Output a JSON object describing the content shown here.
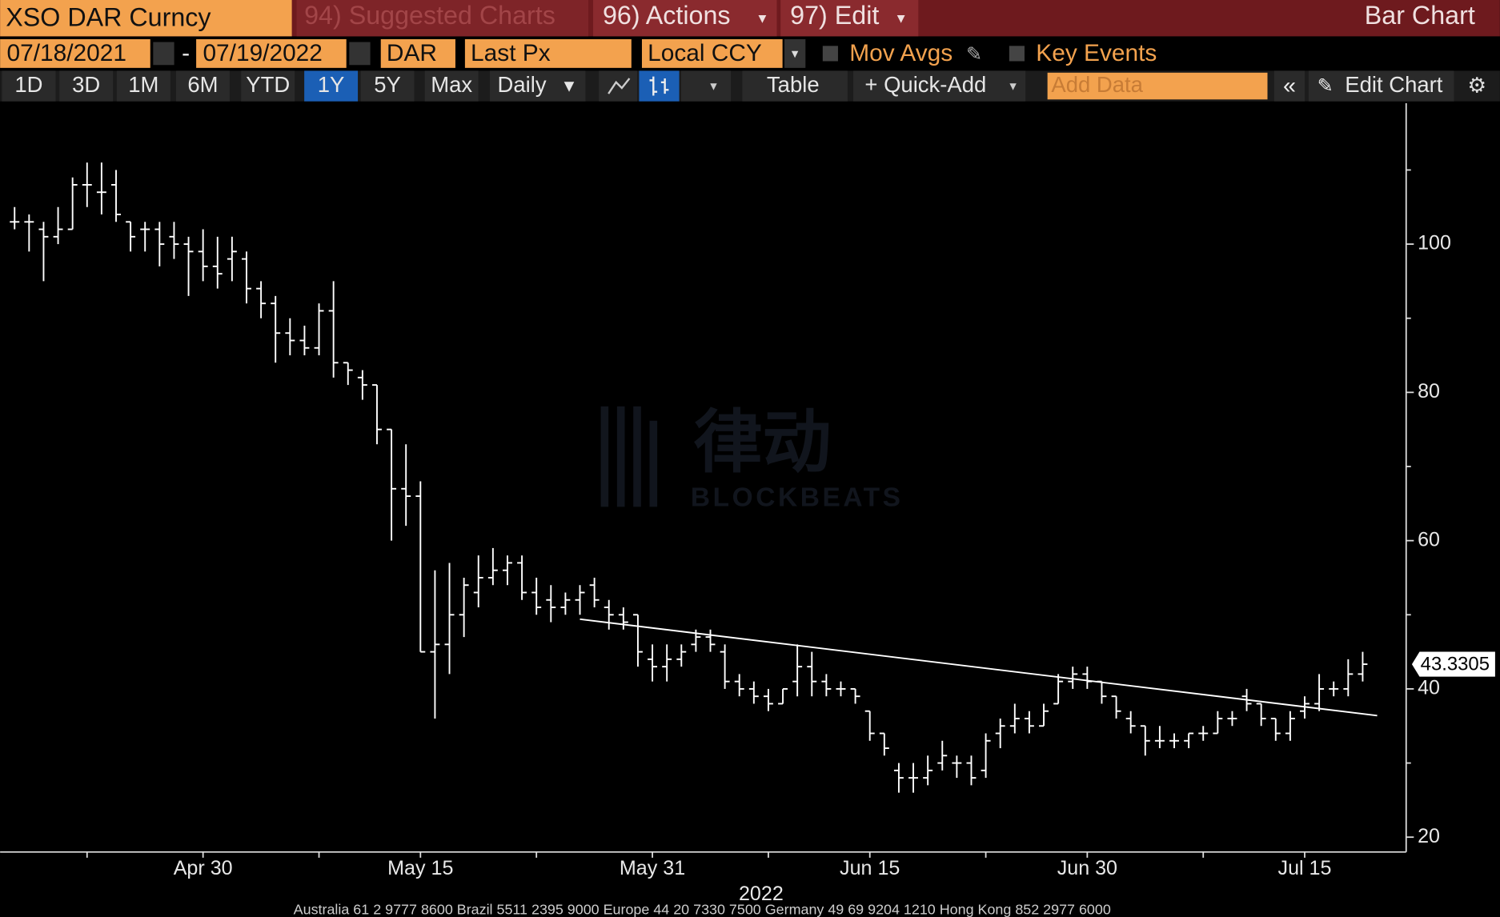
{
  "header": {
    "security": "XSO DAR Curncy",
    "suggested": "94) Suggested Charts",
    "actions": "96) Actions",
    "edit": "97) Edit",
    "chart_kind": "Bar Chart"
  },
  "controls": {
    "start": "07/18/2021",
    "end": "07/19/2022",
    "ticker": "DAR",
    "field": "Last Px",
    "currency": "Local CCY",
    "mov_avgs": "Mov Avgs",
    "key_events": "Key Events"
  },
  "toolbar": {
    "ranges": [
      "1D",
      "3D",
      "1M",
      "6M",
      "YTD",
      "1Y",
      "5Y",
      "Max"
    ],
    "active_range_index": 5,
    "period": "Daily",
    "table": "Table",
    "quick_add": "+ Quick-Add",
    "add_data": "Add Data",
    "edit_chart": "Edit Chart"
  },
  "chart_data": {
    "type": "ohlc",
    "color": "#ffffff",
    "x": [
      "2022-04-17",
      "2022-04-18",
      "2022-04-19",
      "2022-04-20",
      "2022-04-21",
      "2022-04-22",
      "2022-04-23",
      "2022-04-24",
      "2022-04-25",
      "2022-04-26",
      "2022-04-27",
      "2022-04-28",
      "2022-04-29",
      "2022-04-30",
      "2022-05-01",
      "2022-05-02",
      "2022-05-03",
      "2022-05-04",
      "2022-05-05",
      "2022-05-06",
      "2022-05-07",
      "2022-05-08",
      "2022-05-09",
      "2022-05-10",
      "2022-05-11",
      "2022-05-12",
      "2022-05-13",
      "2022-05-14",
      "2022-05-15",
      "2022-05-16",
      "2022-05-17",
      "2022-05-18",
      "2022-05-19",
      "2022-05-20",
      "2022-05-21",
      "2022-05-22",
      "2022-05-23",
      "2022-05-24",
      "2022-05-25",
      "2022-05-26",
      "2022-05-27",
      "2022-05-28",
      "2022-05-29",
      "2022-05-30",
      "2022-05-31",
      "2022-06-01",
      "2022-06-02",
      "2022-06-03",
      "2022-06-04",
      "2022-06-05",
      "2022-06-06",
      "2022-06-07",
      "2022-06-08",
      "2022-06-09",
      "2022-06-10",
      "2022-06-11",
      "2022-06-12",
      "2022-06-13",
      "2022-06-14",
      "2022-06-15",
      "2022-06-16",
      "2022-06-17",
      "2022-06-18",
      "2022-06-19",
      "2022-06-20",
      "2022-06-21",
      "2022-06-22",
      "2022-06-23",
      "2022-06-24",
      "2022-06-25",
      "2022-06-26",
      "2022-06-27",
      "2022-06-28",
      "2022-06-29",
      "2022-06-30",
      "2022-07-01",
      "2022-07-02",
      "2022-07-03",
      "2022-07-04",
      "2022-07-05",
      "2022-07-06",
      "2022-07-07",
      "2022-07-08",
      "2022-07-09",
      "2022-07-10",
      "2022-07-11",
      "2022-07-12",
      "2022-07-13",
      "2022-07-14",
      "2022-07-15",
      "2022-07-16",
      "2022-07-17",
      "2022-07-18",
      "2022-07-19"
    ],
    "ohlc": [
      [
        103,
        105,
        102,
        103
      ],
      [
        103,
        104,
        99,
        103
      ],
      [
        102,
        103,
        95,
        101
      ],
      [
        101,
        105,
        100,
        102
      ],
      [
        102,
        109,
        102,
        108
      ],
      [
        108,
        111,
        105,
        108
      ],
      [
        107,
        111,
        104,
        107
      ],
      [
        108,
        110,
        103,
        104
      ],
      [
        103,
        103,
        99,
        101
      ],
      [
        102,
        103,
        99,
        102
      ],
      [
        102,
        103,
        97,
        100
      ],
      [
        101,
        103,
        98,
        100
      ],
      [
        100,
        101,
        93,
        99
      ],
      [
        99,
        102,
        95,
        97
      ],
      [
        97,
        101,
        94,
        96
      ],
      [
        98,
        101,
        95,
        99
      ],
      [
        98,
        99,
        92,
        94
      ],
      [
        94,
        95,
        90,
        92
      ],
      [
        92,
        93,
        84,
        88
      ],
      [
        88,
        90,
        85,
        87
      ],
      [
        87,
        89,
        85,
        86
      ],
      [
        86,
        92,
        85,
        91
      ],
      [
        91,
        95,
        82,
        84
      ],
      [
        84,
        84,
        81,
        83
      ],
      [
        82,
        83,
        79,
        81
      ],
      [
        81,
        81,
        73,
        75
      ],
      [
        75,
        75,
        60,
        67
      ],
      [
        67,
        73,
        62,
        66
      ],
      [
        66,
        68,
        45,
        45
      ],
      [
        45,
        56,
        36,
        46
      ],
      [
        46,
        57,
        42,
        50
      ],
      [
        50,
        55,
        47,
        54
      ],
      [
        53,
        58,
        51,
        55
      ],
      [
        55,
        59,
        54,
        56
      ],
      [
        56,
        58,
        54,
        57
      ],
      [
        57,
        58,
        52,
        53
      ],
      [
        53,
        55,
        50,
        51
      ],
      [
        52,
        54,
        49,
        51
      ],
      [
        51,
        53,
        50,
        52
      ],
      [
        52,
        54,
        50,
        53
      ],
      [
        54,
        55,
        51,
        52
      ],
      [
        51,
        52,
        48,
        50
      ],
      [
        50,
        51,
        48,
        49
      ],
      [
        50,
        50,
        43,
        45
      ],
      [
        44,
        46,
        41,
        43
      ],
      [
        43,
        46,
        41,
        44
      ],
      [
        44,
        46,
        43,
        45
      ],
      [
        46,
        48,
        45,
        47
      ],
      [
        47,
        48,
        45,
        46
      ],
      [
        45,
        46,
        40,
        41
      ],
      [
        41,
        42,
        39,
        40
      ],
      [
        40,
        41,
        38,
        39
      ],
      [
        39,
        40,
        37,
        38
      ],
      [
        38,
        40,
        38,
        40
      ],
      [
        41,
        46,
        39,
        43
      ],
      [
        43,
        45,
        39,
        41
      ],
      [
        41,
        42,
        39,
        40
      ],
      [
        40,
        41,
        39,
        40
      ],
      [
        40,
        40,
        38,
        39
      ],
      [
        37,
        37,
        33,
        34
      ],
      [
        34,
        34,
        31,
        32
      ],
      [
        29,
        30,
        26,
        28
      ],
      [
        28,
        30,
        26,
        28
      ],
      [
        28,
        31,
        27,
        29
      ],
      [
        30,
        33,
        29,
        31
      ],
      [
        30,
        31,
        28,
        30
      ],
      [
        30,
        31,
        27,
        28
      ],
      [
        29,
        34,
        28,
        33
      ],
      [
        34,
        36,
        32,
        35
      ],
      [
        35,
        38,
        34,
        36
      ],
      [
        36,
        37,
        34,
        35
      ],
      [
        35,
        38,
        35,
        37
      ],
      [
        38,
        42,
        38,
        41
      ],
      [
        41,
        43,
        40,
        42
      ],
      [
        42,
        43,
        40,
        41
      ],
      [
        41,
        41,
        38,
        39
      ],
      [
        39,
        39,
        36,
        37
      ],
      [
        36,
        37,
        34,
        35
      ],
      [
        35,
        35,
        31,
        33
      ],
      [
        33,
        35,
        32,
        33
      ],
      [
        33,
        34,
        32,
        33
      ],
      [
        33,
        34,
        32,
        34
      ],
      [
        34,
        35,
        33,
        34
      ],
      [
        34,
        37,
        34,
        36
      ],
      [
        36,
        37,
        35,
        36
      ],
      [
        39,
        40,
        37,
        38
      ],
      [
        38,
        38,
        35,
        36
      ],
      [
        36,
        36,
        33,
        34
      ],
      [
        34,
        37,
        33,
        36
      ],
      [
        37,
        39,
        36,
        38
      ],
      [
        38,
        42,
        37,
        40
      ],
      [
        40,
        41,
        39,
        40
      ],
      [
        40,
        44,
        39,
        42
      ],
      [
        42,
        45,
        41,
        43.3305
      ]
    ],
    "trendline": {
      "x": [
        "2022-05-26",
        "2022-07-20"
      ],
      "values": [
        49.4,
        36.4
      ]
    },
    "last_price": 43.3305,
    "xlim": [
      "2022-04-16",
      "2022-07-22"
    ],
    "xticks": [
      {
        "value": "2022-04-30",
        "label": "Apr 30"
      },
      {
        "value": "2022-05-15",
        "label": "May 15"
      },
      {
        "value": "2022-05-31",
        "label": "May 31"
      },
      {
        "value": "2022-06-15",
        "label": "Jun 15"
      },
      {
        "value": "2022-06-30",
        "label": "Jun 30"
      },
      {
        "value": "2022-07-15",
        "label": "Jul 15"
      }
    ],
    "xminor": [
      "2022-04-22",
      "2022-05-08",
      "2022-05-23",
      "2022-06-08",
      "2022-06-23",
      "2022-07-08"
    ],
    "year_label": "2022",
    "ylim": [
      18,
      119
    ],
    "yticks": [
      20,
      40,
      60,
      80,
      100
    ],
    "yminor": [
      30,
      50,
      70,
      90,
      110
    ]
  },
  "watermark": {
    "logo": "律动",
    "text": "BLOCKBEATS"
  },
  "footer": "Australia 61 2 9777 8600 Brazil 5511 2395 9000 Europe 44 20 7330 7500 Germany 49 69 9204 1210 Hong Kong 852 2977 6000"
}
